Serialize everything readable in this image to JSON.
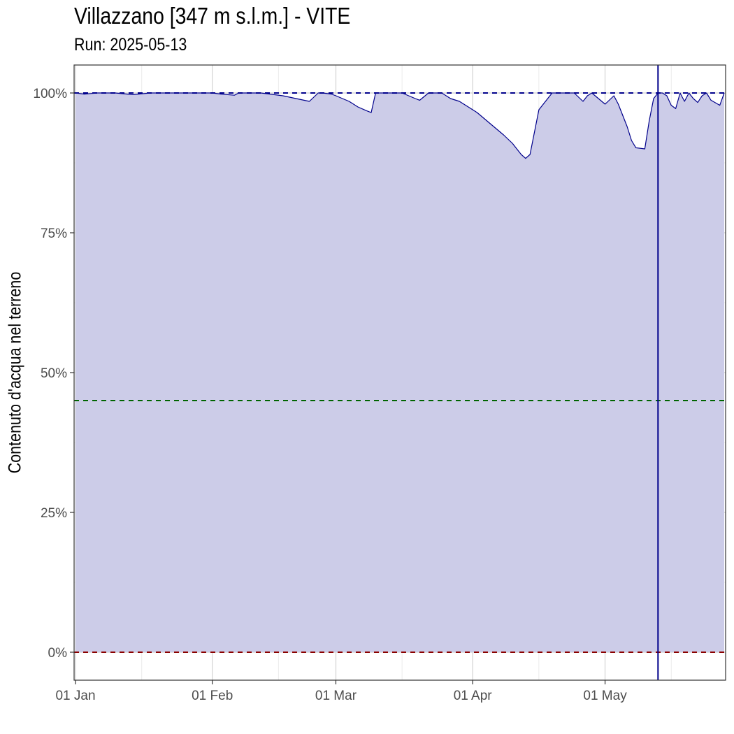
{
  "title": "Villazzano [347 m s.l.m.] - VITE",
  "subtitle": "Run: 2025-05-13",
  "chart_data": {
    "type": "area",
    "title": "Villazzano [347 m s.l.m.] - VITE",
    "subtitle": "Run: 2025-05-13",
    "xlabel": "",
    "ylabel": "Contenuto d'acqua nel terreno",
    "x_ticks": [
      "01 Jan",
      "01 Feb",
      "01 Mar",
      "01 Apr",
      "01 May"
    ],
    "y_ticks": [
      "0%",
      "25%",
      "50%",
      "75%",
      "100%"
    ],
    "xlim": [
      "2025-01-01",
      "2025-05-28"
    ],
    "ylim": [
      -0.05,
      1.05
    ],
    "grid": true,
    "colors": {
      "line": "#00008B",
      "fill": "#CCCCE8",
      "run_line": "#00008B",
      "ref_top": "#00008B",
      "ref_mid": "#006400",
      "ref_bottom": "#8B0000"
    },
    "reference_lines": [
      {
        "y": 1.0,
        "color": "#00008B",
        "style": "dashed"
      },
      {
        "y": 0.45,
        "color": "#006400",
        "style": "dashed"
      },
      {
        "y": 0.0,
        "color": "#8B0000",
        "style": "dashed"
      }
    ],
    "vertical_line": {
      "x": "2025-05-13",
      "color": "#00008B"
    },
    "series": [
      {
        "x": [
          "2025-01-01",
          "2025-01-03",
          "2025-01-06",
          "2025-01-10",
          "2025-01-14",
          "2025-01-18",
          "2025-01-19",
          "2025-01-21",
          "2025-01-25",
          "2025-01-28",
          "2025-02-01",
          "2025-02-03",
          "2025-02-06",
          "2025-02-07",
          "2025-02-09",
          "2025-02-12",
          "2025-02-15",
          "2025-02-17",
          "2025-02-20",
          "2025-02-23",
          "2025-02-25",
          "2025-02-26",
          "2025-02-28",
          "2025-03-01",
          "2025-03-04",
          "2025-03-06",
          "2025-03-08",
          "2025-03-09",
          "2025-03-10",
          "2025-03-11",
          "2025-03-14",
          "2025-03-16",
          "2025-03-19",
          "2025-03-20",
          "2025-03-22",
          "2025-03-23",
          "2025-03-25",
          "2025-03-27",
          "2025-03-29",
          "2025-03-31",
          "2025-04-02",
          "2025-04-05",
          "2025-04-08",
          "2025-04-10",
          "2025-04-11",
          "2025-04-12",
          "2025-04-13",
          "2025-04-14",
          "2025-04-16",
          "2025-04-19",
          "2025-04-21",
          "2025-04-22",
          "2025-04-24",
          "2025-04-26",
          "2025-04-27",
          "2025-04-28",
          "2025-05-01",
          "2025-05-03",
          "2025-05-04",
          "2025-05-05",
          "2025-05-06",
          "2025-05-07",
          "2025-05-08",
          "2025-05-10",
          "2025-05-11",
          "2025-05-12",
          "2025-05-13",
          "2025-05-14",
          "2025-05-15",
          "2025-05-16",
          "2025-05-17",
          "2025-05-18",
          "2025-05-19",
          "2025-05-20",
          "2025-05-21",
          "2025-05-22",
          "2025-05-23",
          "2025-05-24",
          "2025-05-25",
          "2025-05-27",
          "2025-05-28"
        ],
        "y": [
          1.0,
          0.998,
          1.0,
          1.0,
          0.997,
          1.0,
          1.0,
          1.0,
          1.0,
          1.0,
          1.0,
          0.998,
          0.996,
          1.0,
          1.0,
          1.0,
          0.997,
          0.995,
          0.99,
          0.985,
          1.0,
          1.0,
          0.998,
          0.995,
          0.985,
          0.975,
          0.968,
          0.965,
          1.0,
          1.0,
          1.0,
          1.0,
          0.99,
          0.987,
          1.0,
          1.0,
          1.0,
          0.99,
          0.985,
          0.975,
          0.965,
          0.945,
          0.925,
          0.91,
          0.9,
          0.89,
          0.883,
          0.89,
          0.97,
          1.0,
          1.0,
          1.0,
          1.0,
          0.985,
          0.995,
          1.0,
          0.98,
          0.995,
          0.98,
          0.96,
          0.94,
          0.915,
          0.902,
          0.9,
          0.95,
          0.99,
          1.0,
          1.0,
          0.995,
          0.978,
          0.972,
          1.0,
          0.985,
          1.0,
          0.99,
          0.983,
          0.995,
          1.0,
          0.987,
          0.978,
          1.0
        ]
      }
    ]
  }
}
